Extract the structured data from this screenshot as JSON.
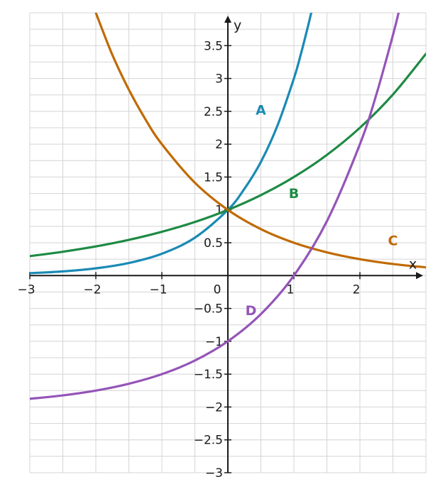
{
  "chart_data": {
    "type": "line",
    "title": "",
    "xlabel": "x",
    "ylabel": "y",
    "xlim": [
      -3,
      3
    ],
    "ylim": [
      -3,
      4
    ],
    "grid": true,
    "x_ticks": [
      -3,
      -2,
      -1,
      0,
      1,
      2
    ],
    "x_tick_labels": [
      "−3",
      "−2",
      "−1",
      "0",
      "1",
      "2"
    ],
    "y_ticks": [
      -3,
      -2.5,
      -2,
      -1.5,
      -1,
      -0.5,
      0.5,
      1,
      1.5,
      2,
      2.5,
      3,
      3.5
    ],
    "y_tick_labels": [
      "−3",
      "−2.5",
      "−2",
      "−1.5",
      "−1",
      "−0.5",
      "0.5",
      "1",
      "1.5",
      "2",
      "2.5",
      "3",
      "3.5"
    ],
    "series": [
      {
        "name": "A",
        "color": "#1a8ab5",
        "label_at": [
          0.5,
          2.45
        ],
        "x": [
          -3,
          -2.5,
          -2,
          -1.5,
          -1,
          -0.5,
          0,
          0.25,
          0.5,
          0.75,
          1,
          1.1,
          1.2,
          1.27
        ],
        "y": [
          0.037,
          0.064,
          0.111,
          0.192,
          0.333,
          0.577,
          1,
          1.32,
          1.73,
          2.28,
          3,
          3.35,
          3.74,
          4.03
        ]
      },
      {
        "name": "B",
        "color": "#1e8a44",
        "label_at": [
          1.0,
          1.18
        ],
        "x": [
          -3,
          -2.5,
          -2,
          -1.5,
          -1,
          -0.5,
          0,
          0.5,
          1,
          1.5,
          2,
          2.5,
          3
        ],
        "y": [
          0.296,
          0.363,
          0.444,
          0.544,
          0.667,
          0.816,
          1,
          1.225,
          1.5,
          1.837,
          2.25,
          2.756,
          3.375
        ]
      },
      {
        "name": "C",
        "color": "#c06a00",
        "label_at": [
          2.5,
          0.46
        ],
        "x": [
          -2,
          -1.75,
          -1.5,
          -1.25,
          -1,
          -0.5,
          0,
          0.5,
          1,
          1.5,
          2,
          2.5,
          3
        ],
        "y": [
          4,
          3.36,
          2.83,
          2.38,
          2,
          1.414,
          1,
          0.707,
          0.5,
          0.354,
          0.25,
          0.177,
          0.125
        ]
      },
      {
        "name": "D",
        "color": "#9455b8",
        "label_at": [
          0.35,
          -0.6
        ],
        "x": [
          -3,
          -2.5,
          -2,
          -1.5,
          -1,
          -0.5,
          0,
          0.5,
          1,
          1.5,
          2,
          2.25,
          2.5,
          2.6
        ],
        "y": [
          -1.875,
          -1.823,
          -1.75,
          -1.646,
          -1.5,
          -1.293,
          -1,
          -0.586,
          0,
          0.828,
          2,
          2.76,
          3.66,
          4.06
        ]
      }
    ]
  }
}
